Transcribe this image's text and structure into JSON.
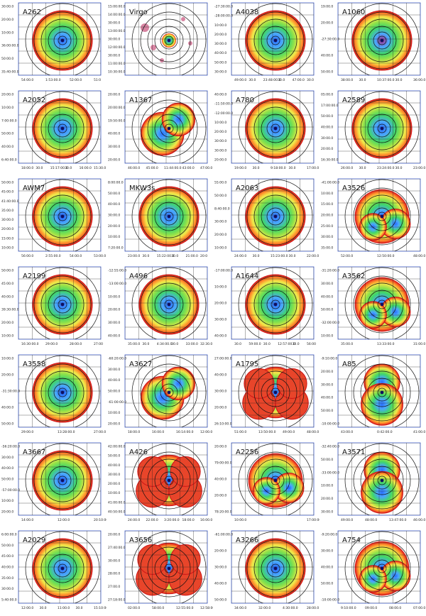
{
  "figure": {
    "panels": [
      {
        "label": "A262",
        "y_ticks": [
          "30:00.0",
          "20:00.0",
          "10:00.0",
          "36:00:00.0",
          "50:00.0",
          "35:40:00.0"
        ],
        "x_ticks": [
          "54:00.0",
          "1:53:00.0",
          "52:00.0",
          "51:0"
        ]
      },
      {
        "label": "Virgo",
        "y_ticks": [
          "15:00:00.0",
          "14:00:00.0",
          "30:00.0",
          "13:00:00.0",
          "30:00.0",
          "12:00:00.0",
          "30:00.0",
          "11:00:00.0",
          "10:30:00.0"
        ],
        "x_ticks": []
      },
      {
        "label": "A4038",
        "y_ticks": [
          "-27:30:00.0",
          "-28:00:00.0",
          "10:00.0",
          "20:00.0",
          "30:00.0",
          "40:00.0",
          "50:00.0",
          "30:00.0"
        ],
        "x_ticks": [
          "49:00.0",
          "30.0",
          "23:48:00.0",
          "30.0",
          "47:00.0",
          "30.0"
        ]
      },
      {
        "label": "A1060",
        "y_ticks": [
          "19:00.0",
          "20:00.0",
          "-27:30:00.0",
          "40:00.0",
          "50:00.0"
        ],
        "x_ticks": [
          "38:00.0",
          "30.0",
          "10:37:00.0",
          "30.0",
          "36:00.0"
        ]
      },
      {
        "label": "A2052",
        "y_ticks": [
          "20:00.0",
          "10:00.0",
          "7:00:00.0",
          "50:00.0",
          "40:00.0",
          "6:40:00.0"
        ],
        "x_ticks": [
          "18:00.0",
          "30.0",
          "15:17:00.0",
          "30.0",
          "16:00.0",
          "15:30.0"
        ]
      },
      {
        "label": "A1367",
        "y_ticks": [
          "20:00.0",
          "20:00:00.0",
          "19:50:00.0",
          "40:00.0",
          "30:00.0",
          "20:00.0"
        ],
        "x_ticks": [
          "46:00.0",
          "45:00.0",
          "11:44:00.0",
          "43:00.0",
          "47:00.0"
        ]
      },
      {
        "label": "A780",
        "y_ticks": [
          "40:00.0",
          "-11:50:00.0",
          "-12:00:00.0",
          "10:00.0",
          "20:00.0",
          "30:00.0",
          "30:00.0",
          "20:00.0"
        ],
        "x_ticks": [
          "19:00.0",
          "30.0",
          "9:18:00.0",
          "30.0",
          "17:00.0"
        ]
      },
      {
        "label": "A2589",
        "y_ticks": [
          "05:00.0",
          "17:00:00.0",
          "50:00.0",
          "40:00.0",
          "30:00.0",
          "20:00.0",
          "16:30:00.0"
        ],
        "x_ticks": [
          "26:00.0",
          "30.0",
          "23:24:00.0",
          "30.0",
          "23:00.0"
        ]
      },
      {
        "label": "AWM7",
        "y_ticks": [
          "50:00.0",
          "45:00.0",
          "41:40:00.0",
          "35:00.0",
          "30:00.0",
          "20:00.0",
          "15:00.0",
          "10:00.0"
        ],
        "x_ticks": [
          "56:00.0",
          "2:55:00.0",
          "54:00.0",
          "53:00.0"
        ]
      },
      {
        "label": "MKW3s",
        "y_ticks": [
          "8:00:00.0",
          "50:00.0",
          "40:00.0",
          "30:00.0",
          "20:00.0",
          "10:00.0",
          "7:20:00.0"
        ],
        "x_ticks": [
          "23:00.0",
          "30.0",
          "15:22:00.0",
          "30.0",
          "21:00.0",
          "20:0"
        ]
      },
      {
        "label": "A2063",
        "y_ticks": [
          "55:00.0",
          "50:00.0",
          "8:40:00.0",
          "30:00.0",
          "20:00.0",
          "10:00.0"
        ],
        "x_ticks": [
          "24:00.0",
          "30.0",
          "15:23:00.0",
          "30.0",
          "22:00.0"
        ]
      },
      {
        "label": "A3526",
        "y_ticks": [
          "-41:00:00.0",
          "10:00.0",
          "15:00.0",
          "20:00.0",
          "25:00.0",
          "30:00.0",
          "35:00.0"
        ],
        "x_ticks": [
          "52:00.0",
          "12:50:00.0",
          "48:00.0"
        ]
      },
      {
        "label": "A2199",
        "y_ticks": [
          "50:00.0",
          "45:00.0",
          "40:00.0",
          "39:30:00.0",
          "20:00.0",
          "10:00.0"
        ],
        "x_ticks": [
          "16:30:00.0",
          "29:00.0",
          "28:00.0",
          "27:00"
        ]
      },
      {
        "label": "A496",
        "y_ticks": [
          "-12:55:00.0",
          "-13:00:00.0",
          "10:00.0",
          "20:00.0",
          "30:00.0",
          "40:00.0"
        ],
        "x_ticks": [
          "35:00.0",
          "30.0",
          "4:34:00.0",
          "30.0",
          "33:00.0",
          "32:30.0"
        ]
      },
      {
        "label": "A1644",
        "y_ticks": [
          "-17:00:00.0",
          "10:00.0",
          "20:00.0",
          "30:00.0",
          "40:00.0"
        ],
        "x_ticks": [
          "30.0",
          "59:00.0",
          "30.0",
          "12:57:00.0",
          "30.0",
          "56:00"
        ]
      },
      {
        "label": "A3562",
        "y_ticks": [
          "-31:20:00.0",
          "30:00.0",
          "40:00.0",
          "50:00.0",
          "-32:00:00.0",
          "10:00.0"
        ],
        "x_ticks": [
          "35:00.0",
          "13:33:00.0",
          "31:00.0"
        ]
      },
      {
        "label": "A3558",
        "y_ticks": [
          "10:00.0",
          "20:00.0",
          "-31:30:00.0",
          "40:00.0",
          "50:00.0"
        ],
        "x_ticks": [
          "29:00.0",
          "13:28:00.0",
          "27:00.0"
        ]
      },
      {
        "label": "A3627",
        "y_ticks": [
          "-60:20:00.0",
          "30:00.0",
          "40:00.0",
          "50:00.0",
          "-61:00:00.0",
          "10:00.0",
          "20:00.0"
        ],
        "x_ticks": [
          "18:00.0",
          "16:00.0",
          "16:14:00.0",
          "12:00.0"
        ]
      },
      {
        "label": "A1795",
        "y_ticks": [
          "27:00:00.0",
          "40:00.0",
          "30:00.0",
          "20:00.0",
          "26:10:00.0"
        ],
        "x_ticks": [
          "51:00.0",
          "13:50:00.0",
          "49:00.0",
          "48:00.0"
        ]
      },
      {
        "label": "A85",
        "y_ticks": [
          "-9:10:00.0",
          "20:00.0",
          "30:00.0",
          "40:00.0",
          "50:00.0",
          "-10:00:00.0"
        ],
        "x_ticks": [
          "43:00.0",
          "0:42:00.0",
          "41:00.0"
        ]
      },
      {
        "label": "A3667",
        "y_ticks": [
          "-56:20:00.0",
          "30:00.0",
          "40:00.0",
          "50:00.0",
          "-57:00:00.0",
          "10:00.0",
          "20:00.0"
        ],
        "x_ticks": [
          "14:00.0",
          "12:00.0",
          "20:10:00.0"
        ]
      },
      {
        "label": "A426",
        "y_ticks": [
          "42:00:00.0",
          "50:00.0",
          "40:00.0",
          "30:00.0",
          "20:00.0",
          "10:00.0",
          "41:00:00.0",
          "40:50:00.0"
        ],
        "x_ticks": [
          "24:00.0",
          "22:00.0",
          "3:20:00.0",
          "18:00.0",
          "16:00.0"
        ]
      },
      {
        "label": "A2256",
        "y_ticks": [
          "20:00.0",
          "79:00:00.0",
          "40:00.0",
          "20:00.0",
          "78:20:00.0"
        ],
        "x_ticks": [
          "10:00.0",
          "17:00:00.0"
        ]
      },
      {
        "label": "A3571",
        "y_ticks": [
          "-32:40:00.0",
          "50:00.0",
          "-33:00:00.0",
          "10:00.0",
          "20:00.0",
          "30:00.0"
        ],
        "x_ticks": [
          "49:00.0",
          "48:00.0",
          "13:47:00.0",
          "46:00.0"
        ]
      },
      {
        "label": "A2029",
        "y_ticks": [
          "6:00:00.0",
          "50:00.0",
          "45:00.0",
          "40:00.0",
          "35:00.0",
          "30:00.0",
          "5:40:00.0"
        ],
        "x_ticks": [
          "12:00.0",
          "30.0",
          "11:00.0",
          "30.0",
          "15:10:00.0"
        ]
      },
      {
        "label": "A3656",
        "y_ticks": [
          "20:00.0",
          "27:40:00.0",
          "30:00.0",
          "28:00.0",
          "27:00.0",
          "27:18:00.0"
        ],
        "x_ticks": [
          "02:00.0",
          "58:00.0",
          "12:55:00.0",
          "12:58:00.0"
        ]
      },
      {
        "label": "A3266",
        "y_ticks": [
          "-61:00:00.0",
          "20:00.0",
          "30:00.0",
          "40:00.0",
          "50:00.0"
        ],
        "x_ticks": [
          "34:00.0",
          "32:00.0",
          "4:30:00.0",
          "28:00.0"
        ]
      },
      {
        "label": "A754",
        "y_ticks": [
          "-9:20:00.0",
          "30:00.0",
          "40:00.0",
          "50:00.0",
          "-10:00:00.0"
        ],
        "x_ticks": [
          "9:10:00.0",
          "09:00.0",
          "08:00.0",
          "07:00.0"
        ]
      }
    ]
  }
}
